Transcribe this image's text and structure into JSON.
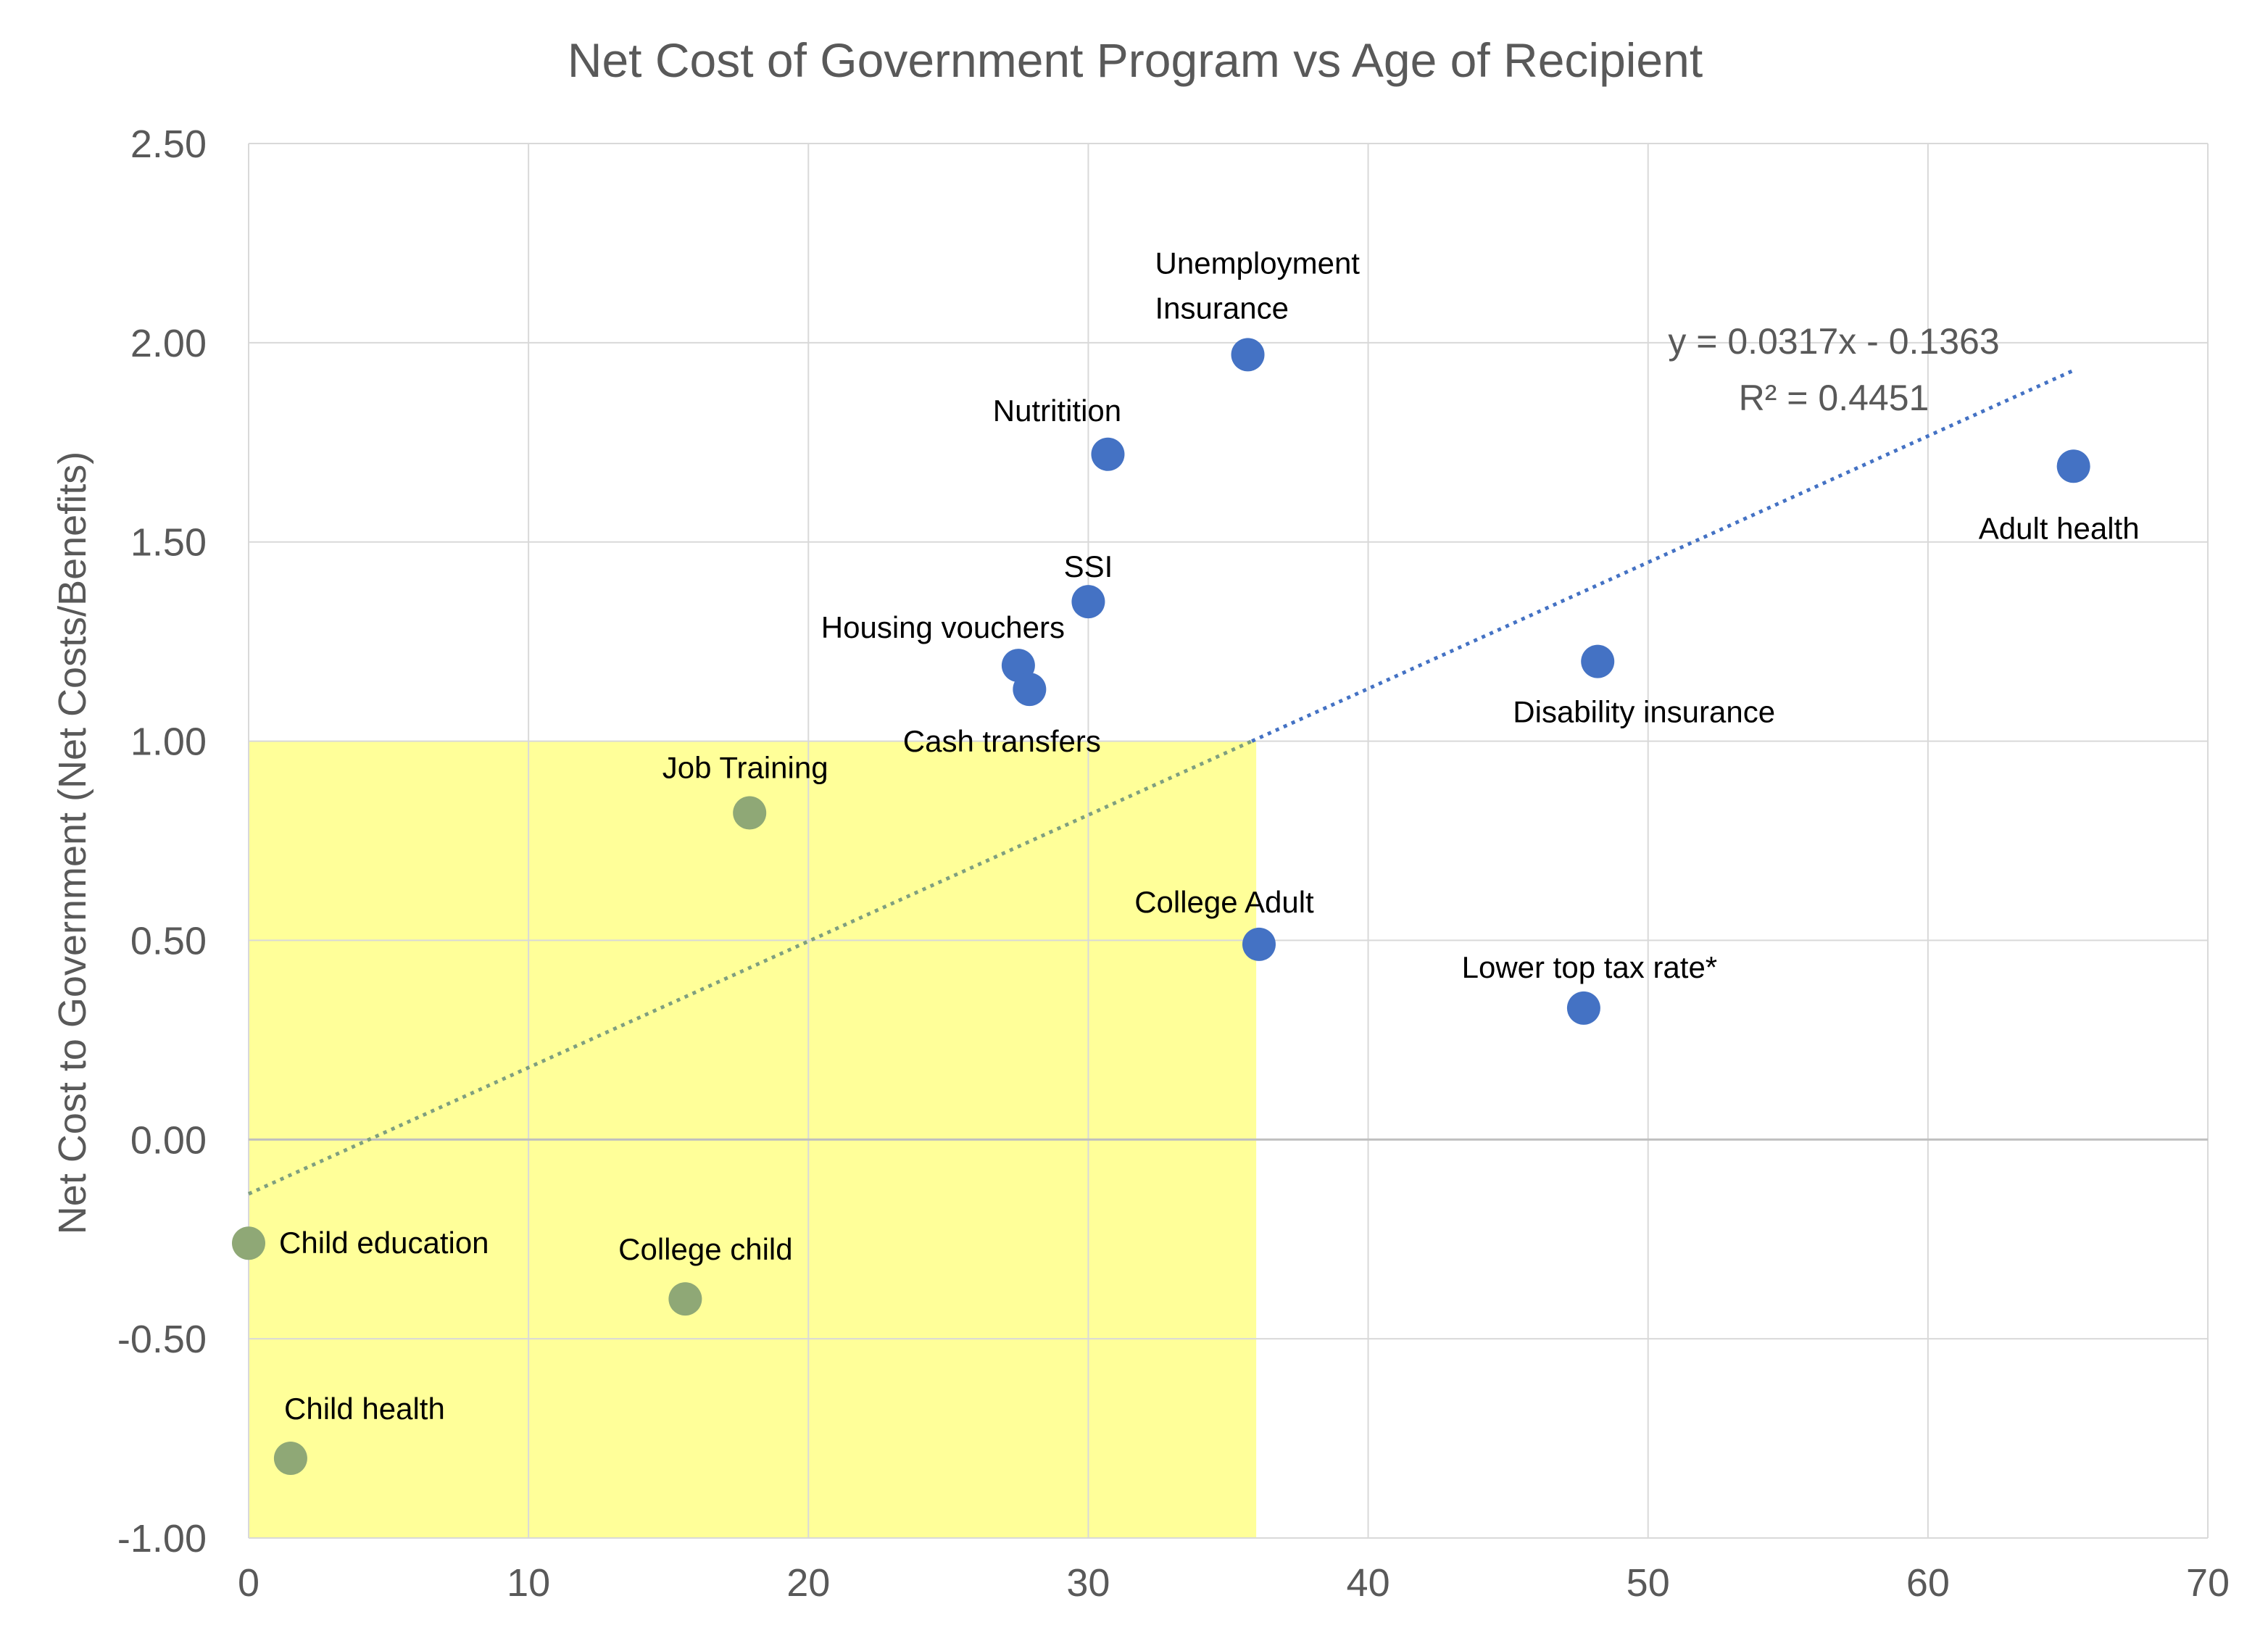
{
  "chart_data": {
    "type": "scatter",
    "title": "Net Cost of Government Program vs Age of Recipient",
    "xlabel": "",
    "ylabel": "Net Cost to Government (Net Costs/Benefits)",
    "xlim": [
      0,
      70
    ],
    "ylim": [
      -1.0,
      2.5
    ],
    "x_ticks": [
      0,
      10,
      20,
      30,
      40,
      50,
      60,
      70
    ],
    "y_ticks": [
      -1.0,
      -0.5,
      0.0,
      0.5,
      1.0,
      1.5,
      2.0,
      2.5
    ],
    "x_tick_labels": [
      "0",
      "10",
      "20",
      "30",
      "40",
      "50",
      "60",
      "70"
    ],
    "y_tick_labels": [
      "-1.00",
      "-0.50",
      "0.00",
      "0.50",
      "1.00",
      "1.50",
      "2.00",
      "2.50"
    ],
    "grid": true,
    "points": [
      {
        "label": "Unemployment Insurance",
        "x": 35.7,
        "y": 1.97
      },
      {
        "label": "Nutritition",
        "x": 30.7,
        "y": 1.72
      },
      {
        "label": "Adult health",
        "x": 65.2,
        "y": 1.69
      },
      {
        "label": "SSI",
        "x": 30.0,
        "y": 1.35
      },
      {
        "label": "Housing vouchers",
        "x": 27.5,
        "y": 1.19
      },
      {
        "label": "Cash transfers",
        "x": 27.9,
        "y": 1.13
      },
      {
        "label": "Disability insurance",
        "x": 48.2,
        "y": 1.2
      },
      {
        "label": "Job Training",
        "x": 17.9,
        "y": 0.82
      },
      {
        "label": "College Adult",
        "x": 36.1,
        "y": 0.49
      },
      {
        "label": "Lower top tax rate*",
        "x": 47.7,
        "y": 0.33
      },
      {
        "label": "Child education",
        "x": 0.0,
        "y": -0.26
      },
      {
        "label": "College child",
        "x": 15.6,
        "y": -0.4
      },
      {
        "label": "Child health",
        "x": 1.5,
        "y": -0.8
      }
    ],
    "trendline": {
      "type": "linear",
      "slope": 0.0317,
      "intercept": -0.1363,
      "x_range": [
        0,
        65.2
      ],
      "equation": "y = 0.0317x - 0.1363",
      "r_squared": "R² = 0.4451"
    },
    "highlight_region": {
      "x": [
        0,
        36
      ],
      "y": [
        -1.0,
        1.0
      ]
    },
    "colors": {
      "point": "#4472C4",
      "point_in_region": "#8FA876",
      "region": "#FFFF99",
      "trendline": "#4472C4",
      "trendline_in_region": "#7F9F7F",
      "grid": "#D9D9D9",
      "text": "#595959"
    }
  }
}
